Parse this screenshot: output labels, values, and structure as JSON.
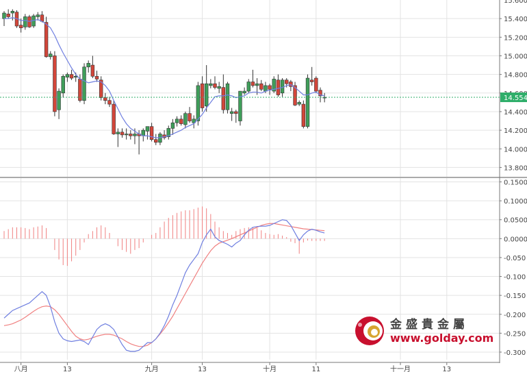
{
  "chart_data": [
    {
      "type": "candlestick",
      "panel": "price",
      "ylim": [
        13.7,
        15.6
      ],
      "y_ticks": [
        "15.400",
        "15.200",
        "15.000",
        "14.800",
        "14.600",
        "14.400",
        "14.200",
        "14.000",
        "13.800"
      ],
      "y_tick_values": [
        15.4,
        15.2,
        15.0,
        14.8,
        14.6,
        14.4,
        14.2,
        14.0,
        13.8
      ],
      "top_tick_partial": "15.600",
      "last_price": "14.554",
      "last_price_value": 14.554,
      "grid": true,
      "ohlc": [
        [
          15.4,
          15.48,
          15.32,
          15.46
        ],
        [
          15.45,
          15.5,
          15.4,
          15.42
        ],
        [
          15.46,
          15.5,
          15.38,
          15.48
        ],
        [
          15.47,
          15.49,
          15.3,
          15.32
        ],
        [
          15.33,
          15.4,
          15.25,
          15.3
        ],
        [
          15.31,
          15.45,
          15.28,
          15.42
        ],
        [
          15.42,
          15.44,
          15.3,
          15.31
        ],
        [
          15.32,
          15.45,
          15.3,
          15.43
        ],
        [
          15.42,
          15.47,
          15.38,
          15.44
        ],
        [
          15.44,
          15.48,
          15.36,
          15.37
        ],
        [
          15.36,
          15.42,
          14.98,
          14.99
        ],
        [
          14.99,
          15.05,
          14.96,
          15.02
        ],
        [
          15.0,
          15.05,
          14.35,
          14.4
        ],
        [
          14.42,
          14.65,
          14.32,
          14.62
        ],
        [
          14.6,
          14.8,
          14.55,
          14.78
        ],
        [
          14.77,
          14.82,
          14.72,
          14.8
        ],
        [
          14.8,
          14.85,
          14.74,
          14.76
        ],
        [
          14.77,
          14.82,
          14.72,
          14.78
        ],
        [
          14.75,
          14.8,
          14.5,
          14.52
        ],
        [
          14.52,
          14.92,
          14.48,
          14.88
        ],
        [
          14.88,
          14.95,
          14.82,
          14.92
        ],
        [
          14.9,
          15.0,
          14.76,
          14.78
        ],
        [
          14.78,
          14.84,
          14.72,
          14.75
        ],
        [
          14.74,
          14.78,
          14.52,
          14.55
        ],
        [
          14.55,
          14.6,
          14.48,
          14.52
        ],
        [
          14.52,
          14.56,
          14.45,
          14.48
        ],
        [
          14.48,
          14.52,
          14.15,
          14.16
        ],
        [
          14.16,
          14.22,
          14.02,
          14.18
        ],
        [
          14.18,
          14.22,
          14.12,
          14.15
        ],
        [
          14.15,
          14.22,
          14.1,
          14.16
        ],
        [
          14.16,
          14.2,
          14.1,
          14.14
        ],
        [
          14.14,
          14.22,
          14.05,
          14.16
        ],
        [
          14.16,
          14.2,
          13.94,
          14.14
        ],
        [
          14.14,
          14.22,
          14.08,
          14.2
        ],
        [
          14.19,
          14.24,
          14.1,
          14.24
        ],
        [
          14.24,
          14.28,
          14.08,
          14.1
        ],
        [
          14.1,
          14.16,
          14.04,
          14.07
        ],
        [
          14.07,
          14.18,
          14.04,
          14.16
        ],
        [
          14.15,
          14.2,
          14.1,
          14.12
        ],
        [
          14.13,
          14.25,
          14.1,
          14.22
        ],
        [
          14.22,
          14.32,
          14.15,
          14.28
        ],
        [
          14.28,
          14.35,
          14.24,
          14.32
        ],
        [
          14.32,
          14.36,
          14.25,
          14.27
        ],
        [
          14.26,
          14.4,
          14.22,
          14.38
        ],
        [
          14.38,
          14.45,
          14.28,
          14.3
        ],
        [
          14.28,
          14.36,
          14.22,
          14.32
        ],
        [
          14.3,
          14.72,
          14.25,
          14.68
        ],
        [
          14.7,
          14.78,
          14.4,
          14.44
        ],
        [
          14.46,
          14.9,
          14.4,
          14.7
        ],
        [
          14.68,
          14.75,
          14.65,
          14.7
        ],
        [
          14.7,
          14.78,
          14.64,
          14.66
        ],
        [
          14.65,
          14.72,
          14.6,
          14.67
        ],
        [
          14.66,
          14.8,
          14.38,
          14.42
        ],
        [
          14.42,
          14.72,
          14.38,
          14.7
        ],
        [
          14.38,
          14.44,
          14.3,
          14.4
        ],
        [
          14.4,
          14.42,
          14.28,
          14.38
        ],
        [
          14.3,
          14.62,
          14.25,
          14.62
        ],
        [
          14.6,
          14.66,
          14.58,
          14.62
        ],
        [
          14.62,
          14.75,
          14.6,
          14.72
        ],
        [
          14.72,
          14.85,
          14.66,
          14.68
        ],
        [
          14.68,
          14.76,
          14.58,
          14.7
        ],
        [
          14.7,
          14.74,
          14.62,
          14.64
        ],
        [
          14.62,
          14.72,
          14.6,
          14.68
        ],
        [
          14.68,
          14.7,
          14.58,
          14.64
        ],
        [
          14.62,
          14.78,
          14.6,
          14.75
        ],
        [
          14.74,
          14.8,
          14.56,
          14.58
        ],
        [
          14.6,
          14.76,
          14.56,
          14.74
        ],
        [
          14.74,
          14.76,
          14.66,
          14.7
        ],
        [
          14.72,
          14.74,
          14.62,
          14.67
        ],
        [
          14.68,
          14.72,
          14.46,
          14.47
        ],
        [
          14.48,
          14.52,
          14.46,
          14.5
        ],
        [
          14.48,
          14.52,
          14.22,
          14.24
        ],
        [
          14.24,
          14.8,
          14.22,
          14.76
        ],
        [
          14.74,
          14.88,
          14.68,
          14.72
        ],
        [
          14.76,
          14.78,
          14.6,
          14.62
        ],
        [
          14.63,
          14.66,
          14.5,
          14.57
        ],
        [
          14.55,
          14.6,
          14.5,
          14.554
        ]
      ],
      "moving_average": [
        15.4,
        15.4,
        15.41,
        15.4,
        15.38,
        15.38,
        15.37,
        15.38,
        15.39,
        15.37,
        15.34,
        15.3,
        15.22,
        15.12,
        15.03,
        14.95,
        14.87,
        14.8,
        14.75,
        14.73,
        14.71,
        14.72,
        14.73,
        14.72,
        14.68,
        14.62,
        14.52,
        14.43,
        14.34,
        14.27,
        14.22,
        14.19,
        14.16,
        14.14,
        14.14,
        14.13,
        14.12,
        14.12,
        14.13,
        14.14,
        14.16,
        14.18,
        14.2,
        14.23,
        14.25,
        14.27,
        14.32,
        14.37,
        14.44,
        14.5,
        14.56,
        14.57,
        14.57,
        14.58,
        14.57,
        14.55,
        14.56,
        14.57,
        14.6,
        14.61,
        14.61,
        14.6,
        14.62,
        14.63,
        14.64,
        14.65,
        14.66,
        14.68,
        14.69,
        14.66,
        14.62,
        14.58,
        14.58,
        14.6,
        14.61,
        14.58,
        14.57
      ],
      "colors": {
        "up": "#3f9e5a",
        "down": "#d2463a",
        "ma": "#6f7fe0",
        "last_price_line": "#2fae6a",
        "last_price_tag": "#2fae6a"
      }
    },
    {
      "type": "macd",
      "panel": "indicator",
      "ylim": [
        -0.32,
        0.16
      ],
      "y_ticks": [
        "0.1500",
        "0.1000",
        "0.0500",
        "0.0000",
        "-0.050",
        "-0.100",
        "-0.150",
        "-0.200",
        "-0.250",
        "-0.300"
      ],
      "y_tick_values": [
        0.15,
        0.1,
        0.05,
        0.0,
        -0.05,
        -0.1,
        -0.15,
        -0.2,
        -0.25,
        -0.3
      ],
      "grid": true,
      "dif": [
        -0.21,
        -0.2,
        -0.19,
        -0.185,
        -0.18,
        -0.175,
        -0.17,
        -0.16,
        -0.15,
        -0.14,
        -0.15,
        -0.18,
        -0.22,
        -0.25,
        -0.265,
        -0.27,
        -0.272,
        -0.27,
        -0.268,
        -0.272,
        -0.28,
        -0.26,
        -0.24,
        -0.23,
        -0.225,
        -0.23,
        -0.24,
        -0.26,
        -0.28,
        -0.295,
        -0.298,
        -0.298,
        -0.295,
        -0.285,
        -0.275,
        -0.275,
        -0.265,
        -0.25,
        -0.23,
        -0.205,
        -0.175,
        -0.15,
        -0.12,
        -0.09,
        -0.07,
        -0.055,
        -0.04,
        -0.01,
        0.01,
        0.025,
        0.005,
        -0.005,
        -0.01,
        -0.015,
        -0.022,
        -0.012,
        -0.005,
        0.01,
        0.022,
        0.03,
        0.032,
        0.033,
        0.033,
        0.035,
        0.04,
        0.045,
        0.05,
        0.048,
        0.035,
        0.015,
        -0.005,
        0.01,
        0.02,
        0.025,
        0.022,
        0.018,
        0.015
      ],
      "dea": [
        -0.23,
        -0.228,
        -0.225,
        -0.22,
        -0.215,
        -0.208,
        -0.2,
        -0.192,
        -0.185,
        -0.18,
        -0.178,
        -0.18,
        -0.188,
        -0.2,
        -0.215,
        -0.23,
        -0.245,
        -0.258,
        -0.265,
        -0.268,
        -0.266,
        -0.262,
        -0.258,
        -0.255,
        -0.253,
        -0.253,
        -0.255,
        -0.26,
        -0.265,
        -0.272,
        -0.278,
        -0.282,
        -0.285,
        -0.285,
        -0.282,
        -0.275,
        -0.265,
        -0.252,
        -0.238,
        -0.222,
        -0.205,
        -0.185,
        -0.165,
        -0.145,
        -0.125,
        -0.105,
        -0.085,
        -0.065,
        -0.048,
        -0.032,
        -0.02,
        -0.012,
        -0.008,
        -0.004,
        0.0,
        0.005,
        0.01,
        0.015,
        0.02,
        0.025,
        0.03,
        0.035,
        0.038,
        0.04,
        0.04,
        0.038,
        0.036,
        0.034,
        0.032,
        0.03,
        0.028,
        0.026,
        0.025,
        0.024,
        0.023,
        0.022,
        0.021
      ],
      "histogram": [
        0.02,
        0.025,
        0.03,
        0.03,
        0.03,
        0.028,
        0.025,
        0.03,
        0.032,
        0.035,
        0.028,
        0.0,
        -0.03,
        -0.055,
        -0.07,
        -0.072,
        -0.06,
        -0.045,
        -0.03,
        -0.01,
        0.012,
        0.02,
        0.03,
        0.035,
        0.03,
        0.015,
        0.0,
        -0.02,
        -0.03,
        -0.035,
        -0.04,
        -0.03,
        -0.025,
        -0.01,
        0.0,
        0.01,
        0.015,
        0.03,
        0.045,
        0.055,
        0.062,
        0.068,
        0.072,
        0.075,
        0.075,
        0.078,
        0.082,
        0.085,
        0.08,
        0.065,
        0.045,
        0.03,
        0.02,
        0.015,
        0.01,
        0.02,
        0.025,
        0.028,
        0.03,
        0.03,
        0.028,
        0.022,
        0.015,
        0.012,
        0.01,
        0.012,
        0.008,
        0.004,
        -0.008,
        -0.012,
        -0.04,
        -0.01,
        -0.005,
        -0.006,
        -0.006,
        -0.006,
        -0.006
      ],
      "colors": {
        "dif": "#6f7fe0",
        "dea": "#f08080",
        "histogram": "#f08080"
      }
    }
  ],
  "x_axis": {
    "labels": [
      {
        "text": "八月",
        "index": 4
      },
      {
        "text": "13",
        "index": 15
      },
      {
        "text": "九月",
        "index": 35
      },
      {
        "text": "13",
        "index": 47
      },
      {
        "text": "十月",
        "index": 63
      },
      {
        "text": "11",
        "index": 74
      },
      {
        "text": "十一月",
        "index": 94
      },
      {
        "text": "13",
        "index": 105
      }
    ]
  },
  "watermark": {
    "brand_cn": "金盛貴金屬",
    "brand_url": "www.golday.com",
    "brand_color": "#c8102e",
    "logo_icon": "golday-logo-icon"
  }
}
